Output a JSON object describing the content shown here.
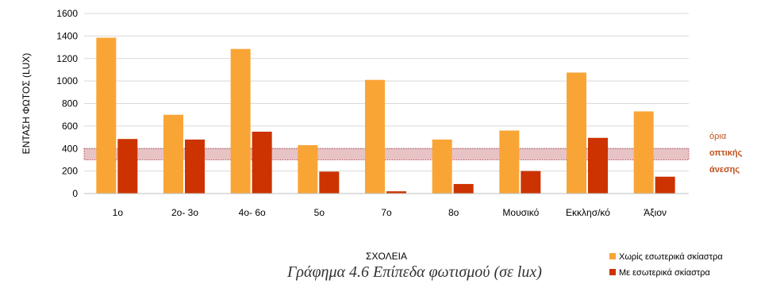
{
  "chart_data": {
    "type": "bar",
    "title": "",
    "xlabel": "ΣΧΟΛΕΙΑ",
    "ylabel": "ΕΝΤΑΣΗ ΦΩΤΟΣ (LUX)",
    "ylim": [
      0,
      1600
    ],
    "yticks": [
      "0",
      "200",
      "400",
      "600",
      "800",
      "1000",
      "1200",
      "1400",
      "1600"
    ],
    "grid": true,
    "legend_position": "bottom-right",
    "categories": [
      "1ο",
      "2ο- 3ο",
      "4ο- 6ο",
      "5ο",
      "7ο",
      "8ο",
      "Μουσικό",
      "Εκκλησ/κό",
      "Άξιον"
    ],
    "series": [
      {
        "name": "Χωρίς εσωτερικά σκίαστρα",
        "color": "#F9A536",
        "values": [
          1385,
          700,
          1285,
          430,
          1010,
          480,
          560,
          1075,
          730
        ]
      },
      {
        "name": "Με εσωτερικά σκίαστρα",
        "color": "#CC3300",
        "values": [
          485,
          480,
          550,
          195,
          20,
          85,
          200,
          495,
          150
        ]
      }
    ],
    "band": {
      "from": 300,
      "to": 400,
      "color": "#B9525C",
      "label_lines": [
        "όρια",
        "οπτικής",
        "άνεσης"
      ],
      "label_color": "#C0501C"
    }
  },
  "caption": "Γράφημα 4.6 Επίπεδα φωτισμού (σε lux)"
}
